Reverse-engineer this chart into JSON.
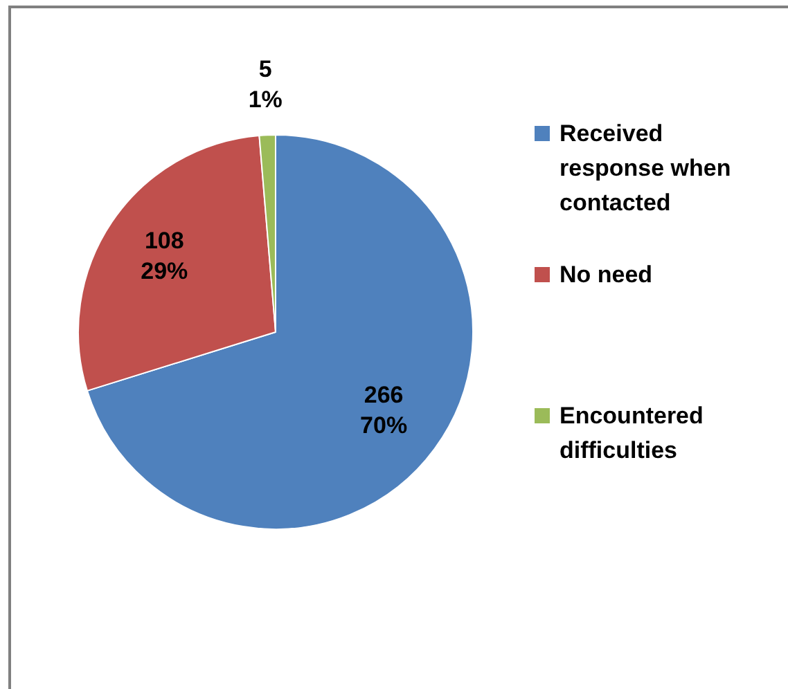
{
  "chart_data": {
    "type": "pie",
    "categories": [
      "Received response when contacted",
      "No need",
      "Encountered difficulties"
    ],
    "values": [
      266,
      108,
      5
    ],
    "colors": [
      "#4f81bd",
      "#c0504d",
      "#9bbb59"
    ],
    "value_labels": [
      "266\n70%",
      "108\n29%",
      "5\n1%"
    ],
    "legend": "right"
  }
}
